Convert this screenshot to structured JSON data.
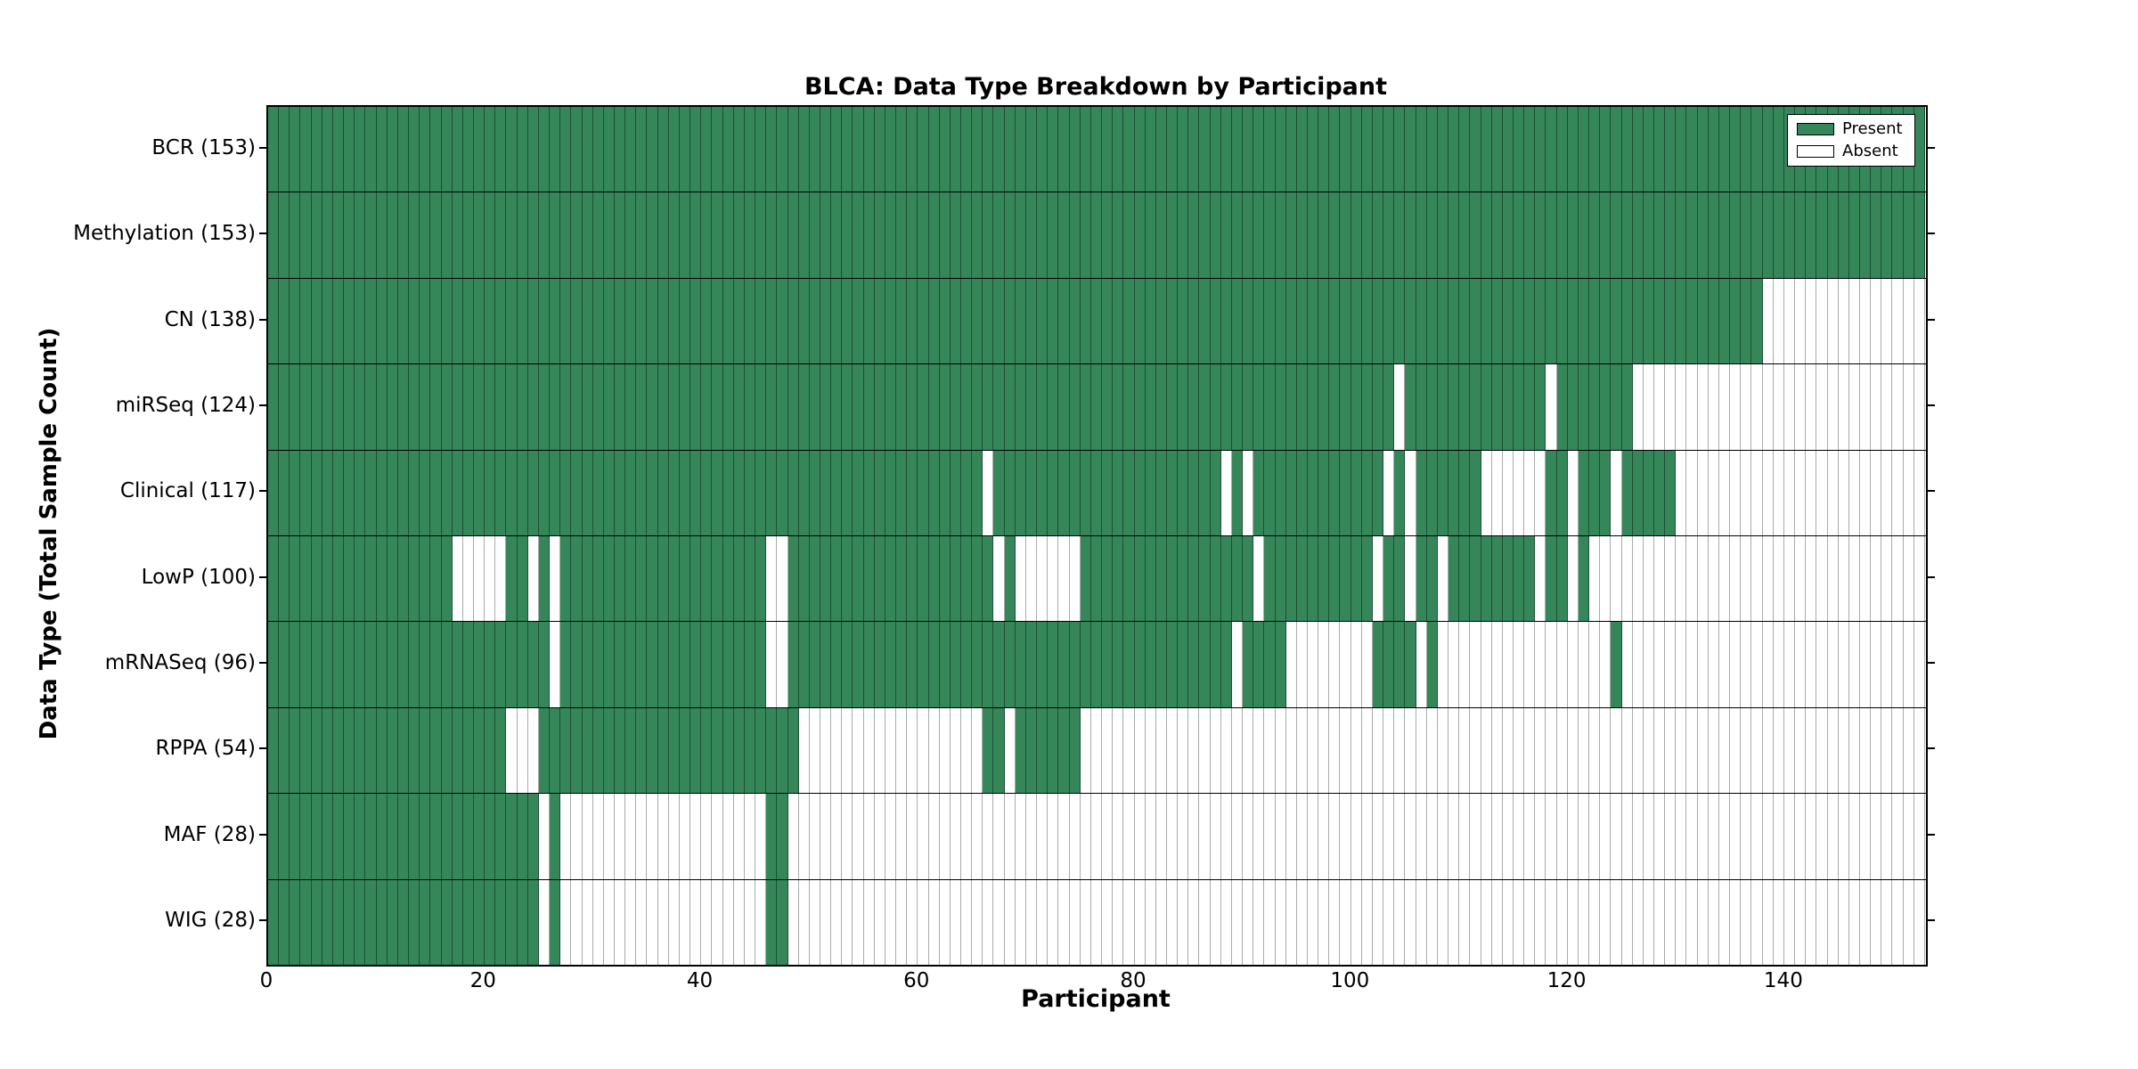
{
  "chart_data": {
    "type": "heatmap",
    "title": "BLCA: Data Type Breakdown by Participant",
    "xlabel": "Participant",
    "ylabel": "Data Type (Total Sample Count)",
    "n_participants": 153,
    "x_ticks": [
      0,
      20,
      40,
      60,
      80,
      100,
      120,
      140
    ],
    "grid": true,
    "colors": {
      "present": "#35875A",
      "absent": "#FFFFFF",
      "spine": "#000000"
    },
    "legend": {
      "position": "upper right",
      "entries": [
        {
          "label": "Present",
          "color": "#35875A"
        },
        {
          "label": "Absent",
          "color": "#FFFFFF"
        }
      ]
    },
    "rows": [
      {
        "label": "BCR (153)",
        "data_type": "BCR",
        "count": 153,
        "absent_ranges": []
      },
      {
        "label": "Methylation (153)",
        "data_type": "Methylation",
        "count": 153,
        "absent_ranges": []
      },
      {
        "label": "CN (138)",
        "data_type": "CN",
        "count": 138,
        "absent_ranges": [
          [
            138,
            152
          ]
        ]
      },
      {
        "label": "miRSeq (124)",
        "data_type": "miRSeq",
        "count": 124,
        "absent_ranges": [
          [
            104,
            104
          ],
          [
            118,
            118
          ],
          [
            126,
            152
          ]
        ]
      },
      {
        "label": "Clinical (117)",
        "data_type": "Clinical",
        "count": 117,
        "absent_ranges": [
          [
            66,
            66
          ],
          [
            88,
            88
          ],
          [
            90,
            90
          ],
          [
            103,
            103
          ],
          [
            105,
            105
          ],
          [
            112,
            117
          ],
          [
            120,
            120
          ],
          [
            124,
            124
          ],
          [
            130,
            152
          ]
        ]
      },
      {
        "label": "LowP (100)",
        "data_type": "LowP",
        "count": 100,
        "absent_ranges": [
          [
            17,
            21
          ],
          [
            24,
            24
          ],
          [
            26,
            26
          ],
          [
            46,
            47
          ],
          [
            67,
            67
          ],
          [
            69,
            74
          ],
          [
            91,
            91
          ],
          [
            102,
            102
          ],
          [
            105,
            105
          ],
          [
            108,
            108
          ],
          [
            117,
            117
          ],
          [
            120,
            120
          ],
          [
            122,
            152
          ]
        ]
      },
      {
        "label": "mRNASeq (96)",
        "data_type": "mRNASeq",
        "count": 96,
        "absent_ranges": [
          [
            26,
            26
          ],
          [
            46,
            47
          ],
          [
            89,
            89
          ],
          [
            94,
            101
          ],
          [
            106,
            106
          ],
          [
            108,
            123
          ],
          [
            125,
            152
          ]
        ]
      },
      {
        "label": "RPPA (54)",
        "data_type": "RPPA",
        "count": 54,
        "absent_ranges": [
          [
            22,
            24
          ],
          [
            49,
            65
          ],
          [
            68,
            68
          ],
          [
            75,
            152
          ]
        ]
      },
      {
        "label": "MAF (28)",
        "data_type": "MAF",
        "count": 28,
        "absent_ranges": [
          [
            25,
            25
          ],
          [
            27,
            45
          ],
          [
            48,
            152
          ]
        ]
      },
      {
        "label": "WIG (28)",
        "data_type": "WIG",
        "count": 28,
        "absent_ranges": [
          [
            25,
            25
          ],
          [
            27,
            45
          ],
          [
            48,
            152
          ]
        ]
      }
    ]
  }
}
